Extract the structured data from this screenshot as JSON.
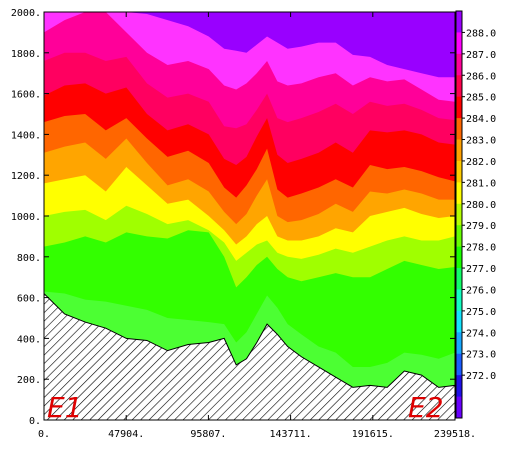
{
  "chart_data": {
    "type": "heatmap",
    "title": "",
    "xlabel": "",
    "ylabel": "",
    "xlim": [
      0,
      239518
    ],
    "ylim": [
      0,
      2000
    ],
    "x_ticks": [
      0,
      47904,
      95807,
      143711,
      191615,
      239518
    ],
    "x_tick_labels": [
      "0.",
      "47904.",
      "95807.",
      "143711.",
      "191615.",
      "239518."
    ],
    "y_ticks": [
      0,
      200,
      400,
      600,
      800,
      1000,
      1200,
      1400,
      1600,
      1800,
      2000
    ],
    "y_tick_labels": [
      "0.",
      "200.",
      "400.",
      "600.",
      "800.",
      "1000.",
      "1200.",
      "1400.",
      "1600.",
      "1800.",
      "2000."
    ],
    "colorbar": {
      "levels": [
        272.0,
        273.0,
        274.0,
        275.0,
        276.0,
        277.0,
        278.0,
        279.0,
        280.0,
        281.0,
        282.0,
        283.0,
        284.0,
        285.0,
        286.0,
        287.0,
        288.0
      ],
      "labels": [
        "272.0",
        "273.0",
        "274.0",
        "275.0",
        "276.0",
        "277.0",
        "278.0",
        "279.0",
        "280.0",
        "281.0",
        "282.0",
        "283.0",
        "284.0",
        "285.0",
        "286.0",
        "287.0",
        "288.0"
      ],
      "colors": [
        "#6a00ff",
        "#1f10e8",
        "#1a5cff",
        "#17a8ff",
        "#14e5ff",
        "#12ffc2",
        "#10ff68",
        "#1aff00",
        "#66ff00",
        "#b4ff00",
        "#ffff00",
        "#ffcc00",
        "#ffa000",
        "#ff6600",
        "#ff0000",
        "#ff004c",
        "#ff0099",
        "#ff00ff",
        "#9900ff"
      ]
    },
    "contour_colors": {
      "c278": "#4cff33",
      "c279": "#33ff00",
      "c280": "#a0ff00",
      "c281": "#ffff00",
      "c282": "#ffa500",
      "c283": "#ff6600",
      "c284": "#ff0000",
      "c285": "#ff0060",
      "c286": "#ff0099",
      "c287": "#ff33ff",
      "c288": "#9900ff"
    },
    "terrain_x": [
      0,
      12000,
      24000,
      36000,
      48000,
      60000,
      72000,
      84000,
      96000,
      105000,
      112000,
      118000,
      124000,
      130000,
      136000,
      142000,
      150000,
      160000,
      170000,
      180000,
      190000,
      200000,
      210000,
      220000,
      230000,
      239518
    ],
    "terrain_height": [
      620,
      520,
      480,
      450,
      400,
      390,
      340,
      370,
      380,
      400,
      270,
      300,
      380,
      470,
      420,
      360,
      310,
      260,
      210,
      160,
      170,
      160,
      240,
      220,
      160,
      170
    ],
    "contour_boundaries": [
      {
        "level": "c279",
        "y": [
          630,
          620,
          590,
          580,
          560,
          540,
          500,
          490,
          480,
          470,
          380,
          430,
          520,
          610,
          550,
          470,
          420,
          360,
          330,
          260,
          260,
          280,
          330,
          320,
          300,
          330
        ]
      },
      {
        "level": "c280",
        "y": [
          850,
          870,
          900,
          870,
          920,
          900,
          890,
          930,
          920,
          800,
          650,
          700,
          760,
          800,
          740,
          700,
          680,
          700,
          720,
          700,
          700,
          740,
          780,
          760,
          740,
          750
        ]
      },
      {
        "level": "c281",
        "y": [
          1000,
          1020,
          1030,
          980,
          1050,
          1010,
          960,
          980,
          930,
          870,
          780,
          820,
          860,
          880,
          820,
          800,
          790,
          810,
          840,
          820,
          850,
          880,
          900,
          880,
          880,
          900
        ]
      },
      {
        "level": "c282",
        "y": [
          1160,
          1180,
          1200,
          1120,
          1240,
          1150,
          1060,
          1080,
          1000,
          930,
          860,
          900,
          960,
          1000,
          900,
          880,
          880,
          900,
          940,
          920,
          1000,
          1020,
          1040,
          1010,
          990,
          1000
        ]
      },
      {
        "level": "c283",
        "y": [
          1310,
          1340,
          1360,
          1280,
          1380,
          1260,
          1150,
          1180,
          1120,
          1020,
          960,
          1010,
          1100,
          1180,
          1000,
          970,
          980,
          1010,
          1060,
          1020,
          1120,
          1110,
          1130,
          1110,
          1080,
          1080
        ]
      },
      {
        "level": "c284",
        "y": [
          1460,
          1490,
          1500,
          1420,
          1480,
          1380,
          1290,
          1320,
          1260,
          1140,
          1090,
          1150,
          1230,
          1330,
          1130,
          1090,
          1110,
          1140,
          1180,
          1140,
          1250,
          1230,
          1240,
          1220,
          1190,
          1170
        ]
      },
      {
        "level": "c285",
        "y": [
          1590,
          1640,
          1650,
          1600,
          1630,
          1500,
          1420,
          1450,
          1400,
          1280,
          1250,
          1290,
          1390,
          1480,
          1300,
          1260,
          1280,
          1310,
          1360,
          1310,
          1420,
          1410,
          1420,
          1400,
          1360,
          1350
        ]
      },
      {
        "level": "c286",
        "y": [
          1760,
          1800,
          1800,
          1760,
          1780,
          1650,
          1580,
          1600,
          1560,
          1440,
          1430,
          1450,
          1520,
          1600,
          1480,
          1460,
          1480,
          1510,
          1550,
          1500,
          1560,
          1540,
          1550,
          1520,
          1480,
          1470
        ]
      },
      {
        "level": "c287",
        "y": [
          1900,
          1960,
          2000,
          2000,
          1900,
          1800,
          1740,
          1760,
          1720,
          1640,
          1620,
          1650,
          1700,
          1760,
          1660,
          1640,
          1650,
          1680,
          1700,
          1640,
          1680,
          1660,
          1670,
          1620,
          1570,
          1560
        ]
      },
      {
        "level": "c288",
        "y": [
          2000,
          2000,
          2000,
          2000,
          2000,
          1990,
          1960,
          1930,
          1880,
          1820,
          1810,
          1800,
          1840,
          1880,
          1850,
          1820,
          1830,
          1850,
          1850,
          1790,
          1780,
          1740,
          1720,
          1700,
          1680,
          1680
        ]
      }
    ],
    "annotations": [
      "E1",
      "E2"
    ]
  }
}
